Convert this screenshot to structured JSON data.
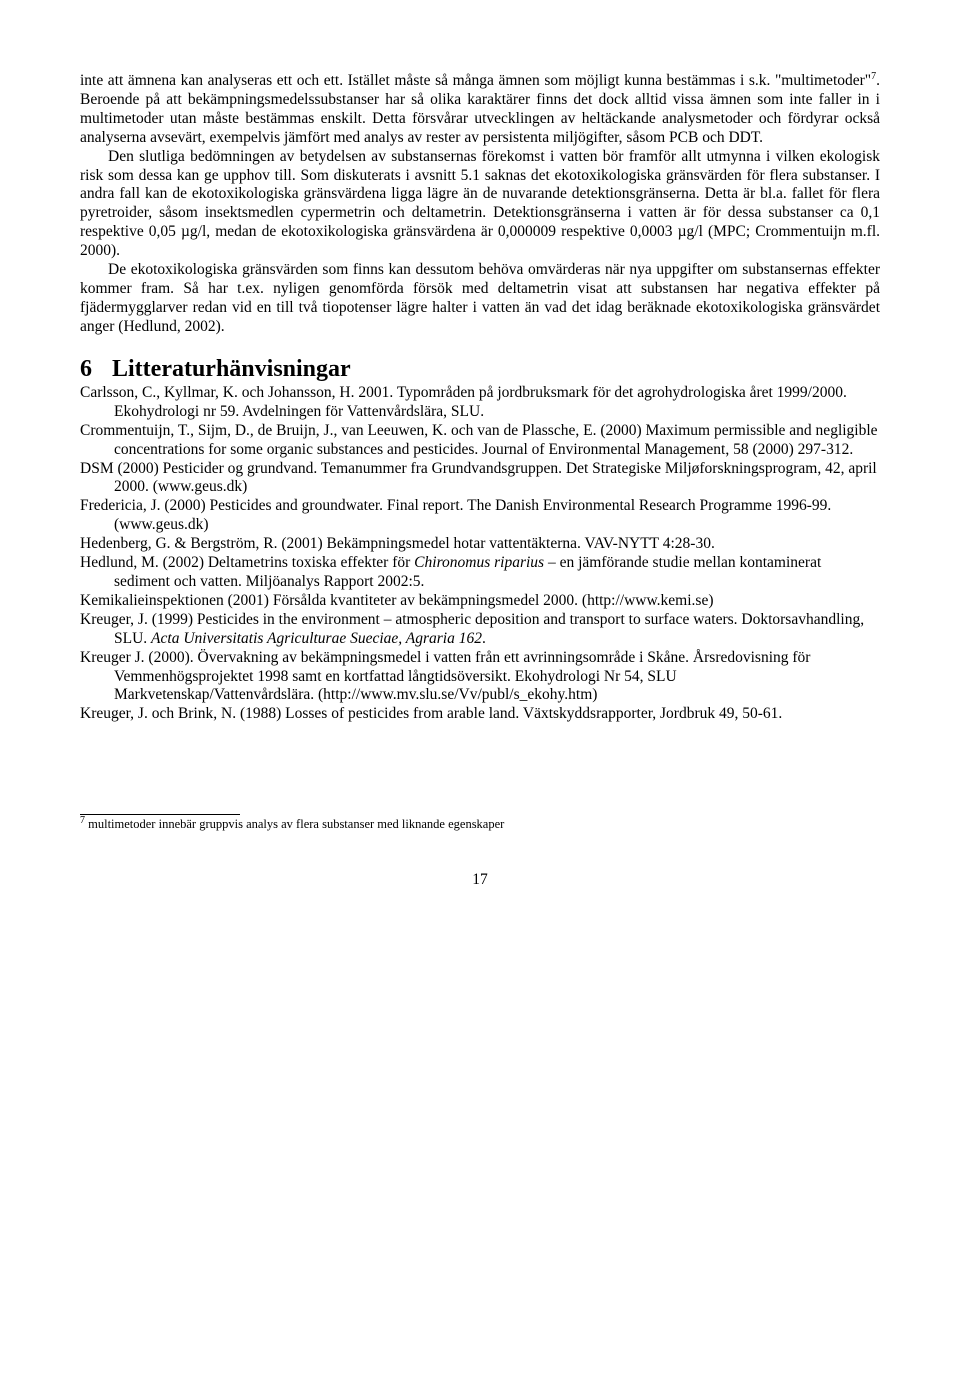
{
  "body_paragraphs": {
    "p1": "inte att ämnena kan analyseras ett och ett. Istället måste så många ämnen som möjligt kunna bestämmas i s.k. \"multimetoder\"",
    "p1_footref": "7",
    "p1_tail": ". Beroende på att bekämpningsmedelssubstanser har så olika karaktärer finns det dock alltid vissa ämnen som inte faller in i multimetoder utan måste bestämmas enskilt. Detta försvårar utvecklingen av heltäckande analysmetoder och fördyrar också analyserna avsevärt, exempelvis jämfört med analys av rester av persistenta miljögifter, såsom PCB och DDT.",
    "p2": "Den slutliga bedömningen av betydelsen av substansernas förekomst i vatten bör framför allt utmynna i vilken ekologisk risk som dessa kan ge upphov till. Som diskuterats i avsnitt 5.1 saknas det ekotoxikologiska gränsvärden för flera substanser. I andra fall kan de ekotoxikologiska gränsvärdena ligga lägre än de nuvarande detektionsgränserna. Detta är bl.a. fallet för flera pyretroider, såsom insektsmedlen cypermetrin och deltametrin. Detektionsgränserna i vatten är för dessa substanser ca 0,1 respektive 0,05 µg/l, medan de ekotoxikologiska gränsvärdena är 0,000009 respektive 0,0003 µg/l (MPC; Crommentuijn m.fl. 2000).",
    "p3": "De ekotoxikologiska gränsvärden som finns kan dessutom behöva omvärderas när nya uppgifter om substansernas effekter kommer fram. Så har t.ex. nyligen genomförda försök med deltametrin visat att substansen har negativa effekter på fjädermygglarver redan vid en till två tiopotenser lägre halter i vatten än vad det idag beräknade ekotoxikologiska gränsvärdet anger (Hedlund, 2002)."
  },
  "section6": {
    "number": "6",
    "title": "Litteraturhänvisningar",
    "refs": [
      "Carlsson, C., Kyllmar, K. och Johansson, H. 2001. Typområden på jordbruksmark för det agrohydrologiska året 1999/2000. Ekohydrologi nr 59. Avdelningen för Vattenvårdslära, SLU.",
      "Crommentuijn, T., Sijm, D., de Bruijn, J., van Leeuwen, K. och van de Plassche, E. (2000) Maximum permissible and negligible concentrations for some organic substances and pesticides. Journal of Environmental Management, 58 (2000) 297-312.",
      "DSM (2000) Pesticider og grundvand. Temanummer fra Grundvandsgruppen. Det Strategiske Miljøforskningsprogram, 42, april 2000. (www.geus.dk)",
      "Fredericia, J. (2000) Pesticides and groundwater. Final report. The Danish Environmental Research Programme 1996-99. (www.geus.dk)",
      "Hedenberg, G. & Bergström, R. (2001) Bekämpningsmedel hotar vattentäkterna. VAV-NYTT 4:28-30.",
      "Kemikalieinspektionen (2001) Försålda kvantiteter av bekämpningsmedel 2000. (http://www.kemi.se)",
      "Kreuger, J. (1999) Pesticides in the environment – atmospheric deposition and transport to surface waters. Doktorsavhandling, SLU. ",
      "Kreuger J. (2000). Övervakning av bekämpningsmedel i vatten från ett avrinningsområde i Skåne. Årsredovisning för Vemmenhögsprojektet 1998 samt en kortfattad långtidsöversikt. Ekohydrologi Nr 54, SLU Markvetenskap/Vattenvårdslära. (http://www.mv.slu.se/Vv/publ/s_ekohy.htm)",
      "Kreuger, J. och Brink, N. (1988) Losses of pesticides from arable land. Växtskyddsrapporter, Jordbruk 49, 50-61."
    ],
    "ref_hedlund_pre": "Hedlund, M. (2002) Deltametrins toxiska effekter för ",
    "ref_hedlund_italic": "Chironomus riparius",
    "ref_hedlund_post": " – en jämförande studie mellan kontaminerat sediment och vatten. Miljöanalys Rapport 2002:5.",
    "ref_kreuger99_italic": "Acta Universitatis Agriculturae Sueciae, Agraria 162",
    "ref_kreuger99_post": "."
  },
  "footnote": {
    "num": "7",
    "text": " multimetoder innebär gruppvis analys av flera substanser med liknande egenskaper"
  },
  "page_number": "17"
}
